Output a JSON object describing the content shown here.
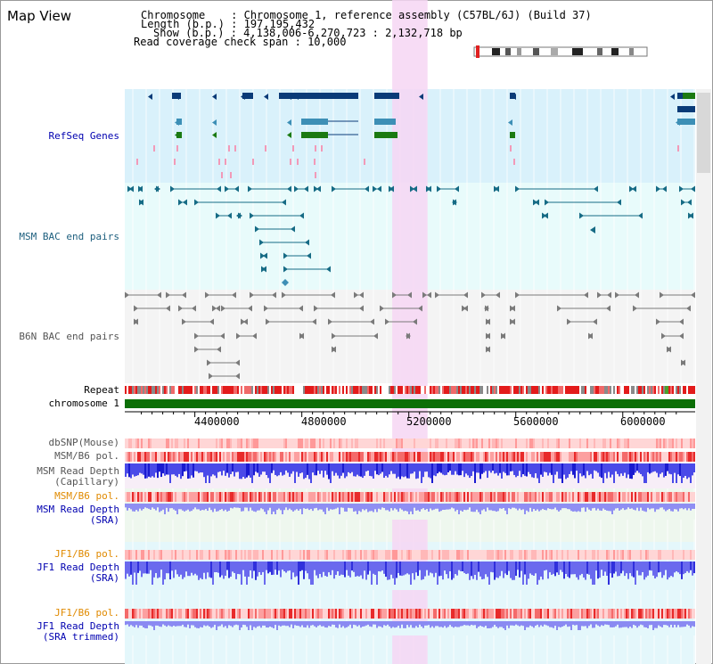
{
  "view": {
    "title": "Map View",
    "info": {
      "chromosome": "Chromosome    : Chromosome 1, reference assembly (C57BL/6J) (Build 37)",
      "length": "Length (b.p.) : 197,195,432",
      "show": "Show (b.p.) : 4,138,006-6,270,723 : 2,132,718 bp",
      "coverage": "Read coverage check span : 10,000"
    }
  },
  "tracks": {
    "refseq": "RefSeq Genes",
    "msm_bac": "MSM BAC end pairs",
    "b6n_bac": "B6N BAC end pairs",
    "repeat": "Repeat",
    "chromosome": "chromosome 1",
    "dbsnp": "dbSNP(Mouse)",
    "msm_b6_pol_1": "MSM/B6 pol.",
    "msm_depth_cap_1": "MSM Read Depth",
    "msm_depth_cap_2": "(Capillary)",
    "msm_b6_pol_2": "MSM/B6 pol.",
    "msm_depth_sra_1": "MSM Read Depth",
    "msm_depth_sra_2": "(SRA)",
    "jf1_b6_pol_1": "JF1/B6 pol.",
    "jf1_depth_sra_1": "JF1 Read Depth",
    "jf1_depth_sra_2": "(SRA)",
    "jf1_b6_pol_2": "JF1/B6 pol.",
    "jf1_depth_trim_1": "JF1 Read Depth",
    "jf1_depth_trim_2": "(SRA trimmed)"
  },
  "axis": {
    "range": [
      4138006,
      6270723
    ],
    "ticks": [
      "4400000",
      "4800000",
      "5200000",
      "5600000",
      "6000000"
    ]
  },
  "highlight_range": [
    5138000,
    5270000
  ],
  "colors": {
    "refseq_bg": "#d9f1fb",
    "bac_bg": "#e8fbfb",
    "b6n_bg": "#f4f4f4",
    "highlight": "#f6d6f3",
    "refseq_gene": "#0a3b78",
    "refseq_teal": "#3d8fb6",
    "refseq_green": "#1b7a12",
    "refseq_pink": "#f29ab8",
    "msm_bac": "#166b85",
    "b6n_bac": "#7a7a7a",
    "chromosome": "#0c6f06",
    "label_blue": "#0000b0",
    "label_msm": "#1d5f7e",
    "label_b6n": "#555555",
    "label_orange": "#e08a00",
    "depth": "#6f6fef",
    "depth_dark": "#2020d8"
  }
}
